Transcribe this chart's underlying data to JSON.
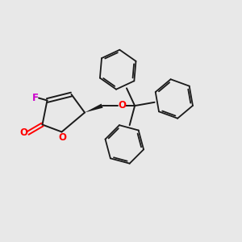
{
  "background_color": "#e8e8e8",
  "bond_color": "#1a1a1a",
  "o_color": "#ff0000",
  "f_color": "#cc00cc",
  "figsize": [
    3.0,
    3.0
  ],
  "dpi": 100,
  "xlim": [
    0,
    10
  ],
  "ylim": [
    0,
    10
  ]
}
